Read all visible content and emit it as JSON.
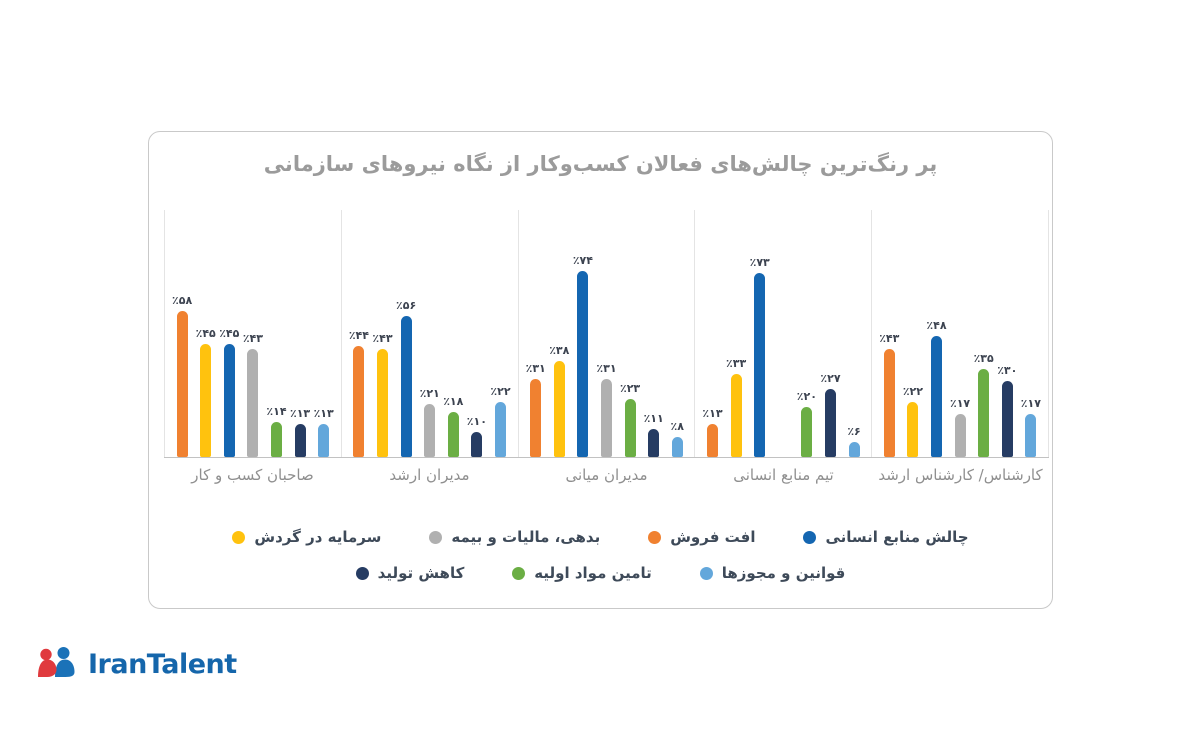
{
  "title": "پر رنگ‌ترین چالش‌های فعالان کسب‌وکار از نگاه نیروهای سازمانی",
  "logo": {
    "text": "IranTalent",
    "icon_red": "#e03a3e",
    "icon_blue": "#1b72b8",
    "text_color": "#1566ab"
  },
  "chart_data": {
    "type": "bar",
    "title": "پر رنگ‌ترین چالش‌های فعالان کسب‌وکار از نگاه نیروهای سازمانی",
    "unit": "%",
    "grid": false,
    "legend_position": "bottom",
    "categories": [
      "صاحبان کسب و کار",
      "مدیران ارشد",
      "مدیران میانی",
      "تیم منابع انسانی",
      "کارشناس/ کارشناس ارشد"
    ],
    "series": [
      {
        "name": "افت فروش",
        "color": "#f08130",
        "values": [
          58,
          44,
          31,
          13,
          43
        ],
        "labels": [
          "٪۵۸",
          "٪۴۴",
          "٪۳۱",
          "٪۱۳",
          "٪۴۳"
        ]
      },
      {
        "name": "سرمایه در گردش",
        "color": "#ffc20e",
        "values": [
          45,
          43,
          38,
          33,
          22
        ],
        "labels": [
          "٪۴۵",
          "٪۴۳",
          "٪۳۸",
          "٪۳۳",
          "٪۲۲"
        ]
      },
      {
        "name": "چالش منابع انسانی",
        "color": "#1466b1",
        "values": [
          45,
          56,
          74,
          73,
          48
        ],
        "labels": [
          "٪۴۵",
          "٪۵۶",
          "٪۷۴",
          "٪۷۳",
          "٪۴۸"
        ]
      },
      {
        "name": "بدهی، مالیات و بیمه",
        "color": "#b0b0b0",
        "values": [
          43,
          21,
          31,
          null,
          17
        ],
        "labels": [
          "٪۴۳",
          "٪۲۱",
          "٪۳۱",
          null,
          "٪۱۷"
        ]
      },
      {
        "name": "تامین مواد اولیه",
        "color": "#6bae44",
        "values": [
          14,
          18,
          23,
          20,
          35
        ],
        "labels": [
          "٪۱۴",
          "٪۱۸",
          "٪۲۳",
          "٪۲۰",
          "٪۳۵"
        ]
      },
      {
        "name": "کاهش تولید",
        "color": "#263c63",
        "values": [
          13,
          10,
          11,
          27,
          30
        ],
        "labels": [
          "٪۱۳",
          "٪۱۰",
          "٪۱۱",
          "٪۲۷",
          "٪۳۰"
        ]
      },
      {
        "name": "قوانین و مجوزها",
        "color": "#63a7db",
        "values": [
          13,
          22,
          8,
          6,
          17
        ],
        "labels": [
          "٪۱۳",
          "٪۲۲",
          "٪۸",
          "٪۶",
          "٪۱۷"
        ]
      }
    ]
  },
  "legend": {
    "rows": [
      [
        1,
        3,
        0,
        2
      ],
      [
        5,
        4,
        6
      ]
    ]
  }
}
